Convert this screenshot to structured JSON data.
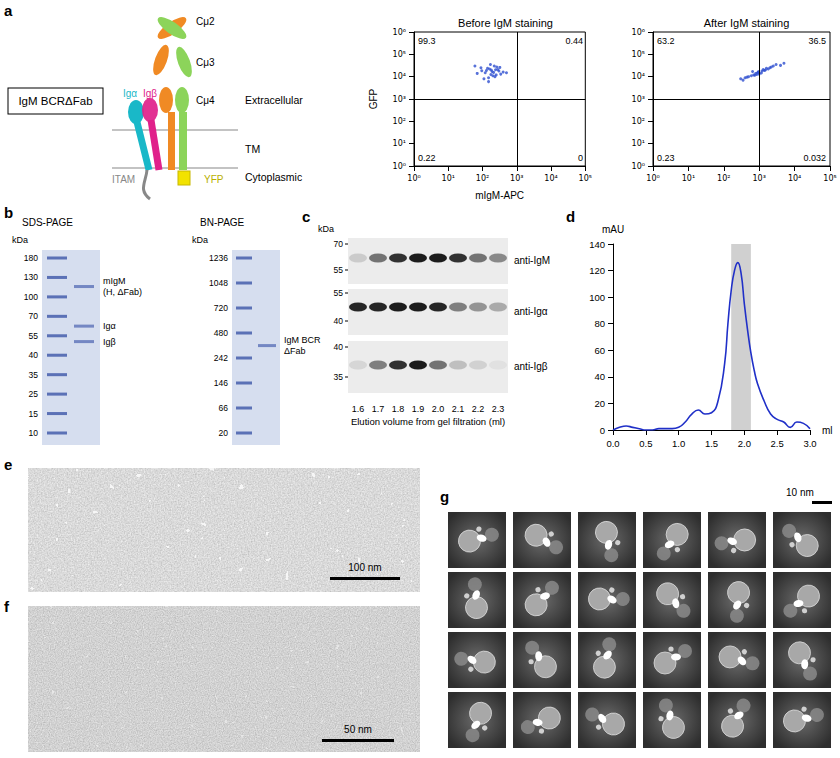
{
  "chart_data": [
    {
      "type": "scatter",
      "title": "Before IgM staining",
      "x_label": "mIgM-APC",
      "y_label": "GFP",
      "log": true,
      "grid": false,
      "color": "#2e4fd0",
      "xlim": [
        1,
        100000
      ],
      "ylim": [
        1,
        1000000
      ],
      "xticks": [
        {
          "value": 1,
          "label": "10⁰"
        },
        {
          "value": 10,
          "label": "10¹"
        },
        {
          "value": 100,
          "label": "10²"
        },
        {
          "value": 1000,
          "label": "10³"
        },
        {
          "value": 10000,
          "label": "10⁴"
        },
        {
          "value": 100000,
          "label": "10⁵"
        }
      ],
      "yticks": [
        {
          "value": 1,
          "label": "10⁰"
        },
        {
          "value": 10,
          "label": "10¹"
        },
        {
          "value": 100,
          "label": "10²"
        },
        {
          "value": 1000,
          "label": "10³"
        },
        {
          "value": 10000,
          "label": "10⁴"
        },
        {
          "value": 100000,
          "label": "10⁵"
        },
        {
          "value": 1000000,
          "label": "10⁶"
        }
      ],
      "x": [
        120,
        180,
        250,
        90,
        300,
        150,
        220,
        400,
        70,
        160,
        200,
        260,
        130,
        340,
        190,
        110,
        280,
        170,
        230,
        140,
        210,
        95,
        320,
        175,
        240,
        60,
        500,
        150
      ],
      "y": [
        15000,
        20000,
        12000,
        25000,
        18000,
        9000,
        30000,
        16000,
        14000,
        22000,
        11000,
        27000,
        19000,
        13000,
        17000,
        8000,
        21000,
        35000,
        10000,
        24000,
        15500,
        18500,
        26000,
        12500,
        20500,
        30000,
        15000,
        6000
      ],
      "gates": [
        1000,
        1000
      ],
      "quadrant_values": {
        "upper_left": 99.3,
        "upper_right": 0.44,
        "lower_left": 0.22,
        "lower_right": 0
      }
    },
    {
      "type": "scatter",
      "title": "After IgM staining",
      "log": true,
      "grid": false,
      "color": "#2e4fd0",
      "xlim": [
        1,
        100000
      ],
      "ylim": [
        1,
        1000000
      ],
      "xticks": [
        {
          "value": 1,
          "label": "10⁰"
        },
        {
          "value": 10,
          "label": "10¹"
        },
        {
          "value": 100,
          "label": "10²"
        },
        {
          "value": 1000,
          "label": "10³"
        },
        {
          "value": 10000,
          "label": "10⁴"
        },
        {
          "value": 100000,
          "label": "10⁵"
        }
      ],
      "yticks": [
        {
          "value": 1,
          "label": "10⁰"
        },
        {
          "value": 10,
          "label": "10¹"
        },
        {
          "value": 100,
          "label": "10²"
        },
        {
          "value": 1000,
          "label": "10³"
        },
        {
          "value": 10000,
          "label": "10⁴"
        },
        {
          "value": 100000,
          "label": "10⁵"
        },
        {
          "value": 1000000,
          "label": "10⁶"
        }
      ],
      "x": [
        400,
        800,
        1200,
        600,
        1500,
        2000,
        900,
        300,
        700,
        950,
        2500,
        1800,
        500,
        1000,
        1400,
        3000,
        650,
        850,
        1300,
        5000,
        450,
        1600,
        950,
        750,
        2200,
        350,
        1150,
        4000
      ],
      "y": [
        9000,
        14000,
        18000,
        11000,
        20000,
        25000,
        15000,
        8000,
        12000,
        16000,
        30000,
        22000,
        10000,
        13000,
        19000,
        35000,
        17000,
        12500,
        21000,
        40000,
        9500,
        24000,
        16500,
        11500,
        27000,
        7000,
        14500,
        32000
      ],
      "gates": [
        1000,
        1000
      ],
      "quadrant_values": {
        "upper_left": 63.2,
        "upper_right": 36.5,
        "lower_left": 0.23,
        "lower_right": 0.032
      }
    },
    {
      "type": "line",
      "x_label": "ml",
      "y_label": "mAU",
      "grid": false,
      "color": "#2030c8",
      "xlim": [
        0,
        3
      ],
      "ylim": [
        0,
        140
      ],
      "xticks": [
        {
          "value": 0,
          "label": "0.0"
        },
        0.5,
        {
          "value": 1,
          "label": "1.0"
        },
        1.5,
        {
          "value": 2,
          "label": "2.0"
        },
        2.5,
        {
          "value": 3,
          "label": "3.0"
        }
      ],
      "yticks": [
        0,
        20,
        40,
        60,
        80,
        100,
        120,
        140
      ],
      "x": [
        0,
        0.1,
        0.2,
        0.3,
        0.4,
        0.5,
        0.6,
        0.7,
        0.8,
        0.9,
        1.0,
        1.1,
        1.2,
        1.3,
        1.4,
        1.5,
        1.6,
        1.7,
        1.75,
        1.8,
        1.85,
        1.9,
        1.95,
        2.0,
        2.05,
        2.1,
        2.15,
        2.2,
        2.3,
        2.4,
        2.5,
        2.6,
        2.7,
        2.8,
        2.9,
        3.0
      ],
      "values": [
        0,
        2,
        3,
        2,
        1,
        0,
        0,
        1,
        1,
        1,
        2,
        6,
        12,
        15,
        12,
        13,
        22,
        50,
        80,
        105,
        120,
        126,
        118,
        95,
        75,
        58,
        45,
        35,
        22,
        12,
        8,
        6,
        2,
        6,
        5,
        1
      ],
      "shaded_range": [
        1.8,
        2.1
      ]
    }
  ],
  "panels": {
    "a": {
      "letter": "a",
      "construct": "IgM BCRΔFab",
      "domains": [
        "Cμ2",
        "Cμ3",
        "Cμ4"
      ],
      "chains": [
        "Igα",
        "Igβ"
      ],
      "regions": [
        "Extracellular",
        "TM",
        "Cytoplasmic"
      ],
      "motif": "ITAM",
      "tag": "YFP"
    },
    "b": {
      "letter": "b",
      "gels": [
        {
          "title": "SDS-PAGE",
          "unit": "kDa",
          "ladder": [
            180,
            130,
            100,
            70,
            55,
            40,
            35,
            25,
            15,
            10
          ],
          "bands": [
            {
              "label": [
                "mIgM",
                "(H, ΔFab)"
              ],
              "kda": 115
            },
            {
              "label": [
                "Igα"
              ],
              "kda": 62
            },
            {
              "label": [
                "Igβ"
              ],
              "kda": 50
            }
          ]
        },
        {
          "title": "BN-PAGE",
          "unit": "kDa",
          "ladder": [
            1236,
            1048,
            720,
            480,
            242,
            146,
            66,
            20
          ],
          "bands": [
            {
              "label": [
                "IgM BCR",
                "ΔFab"
              ],
              "kda": 340
            }
          ]
        }
      ]
    },
    "c": {
      "letter": "c",
      "unit": "kDa",
      "lanes": [
        "1.6",
        "1.7",
        "1.8",
        "1.9",
        "2.0",
        "2.1",
        "2.2",
        "2.3"
      ],
      "x_label": "Elution volume from gel filtration (ml)",
      "blots": [
        {
          "label": "anti-IgM",
          "markers": [
            70,
            55
          ],
          "intensity": [
            0.15,
            0.55,
            0.85,
            0.95,
            0.95,
            0.85,
            0.55,
            0.45
          ]
        },
        {
          "label": "anti-Igα",
          "markers": [
            55,
            40
          ],
          "intensity": [
            0.9,
            0.9,
            0.95,
            0.95,
            0.9,
            0.5,
            0.4,
            0.3
          ]
        },
        {
          "label": "anti-Igβ",
          "markers": [
            40,
            35
          ],
          "intensity": [
            0.1,
            0.5,
            0.85,
            0.95,
            0.55,
            0.2,
            0.12,
            0.05
          ]
        }
      ]
    },
    "d": {
      "letter": "d"
    },
    "e": {
      "letter": "e",
      "scale_bar": "100 nm"
    },
    "f": {
      "letter": "f",
      "scale_bar": "50 nm"
    },
    "g": {
      "letter": "g",
      "scale_bar": "10 nm",
      "rows": 4,
      "columns": 6
    }
  }
}
